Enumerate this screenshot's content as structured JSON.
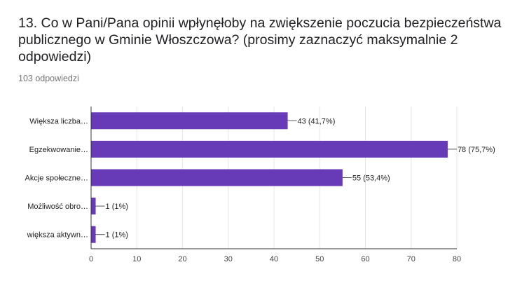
{
  "question": {
    "title": "13. Co w Pani/Pana opinii wpłynęłoby na zwiększenie poczucia bezpieczeństwa publicznego w Gminie Włoszczowa? (prosimy zaznaczyć maksymalnie 2 odpowiedzi)",
    "responses": "103 odpowiedzi"
  },
  "colors": {
    "bar": "#673ab7",
    "grid": "#e6e6e6",
    "axis": "#333333"
  },
  "chart_data": {
    "type": "bar",
    "orientation": "horizontal",
    "categories": [
      "Większa liczba…",
      "Egzekwowanie…",
      "Akcje społeczne…",
      "Możliwość obro…",
      "większa aktywn…"
    ],
    "values": [
      43,
      78,
      55,
      1,
      1
    ],
    "data_labels": [
      "43 (41,7%)",
      "78 (75,7%)",
      "55 (53,4%)",
      "1 (1%)",
      "1 (1%)"
    ],
    "xlim": [
      0,
      80
    ],
    "xticks": [
      0,
      10,
      20,
      30,
      40,
      50,
      60,
      70,
      80
    ],
    "grid": true,
    "legend": "none"
  }
}
